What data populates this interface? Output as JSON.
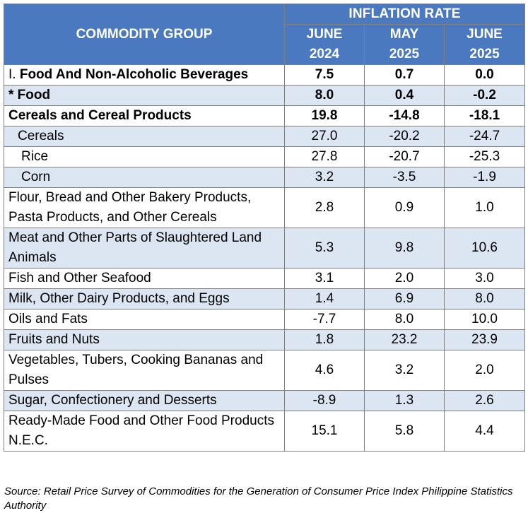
{
  "header": {
    "commodity_label": "COMMODITY GROUP",
    "group_label": "INFLATION RATE",
    "periods": [
      {
        "line1": "JUNE",
        "line2": "2024"
      },
      {
        "line1": "MAY",
        "line2": "2025"
      },
      {
        "line1": "JUNE",
        "line2": "2025"
      }
    ]
  },
  "rows": [
    {
      "prefix": "I. ",
      "label": "Food And Non-Alcoholic Beverages",
      "values": [
        "7.5",
        "0.7",
        "0.0"
      ]
    },
    {
      "label": "* Food",
      "values": [
        "8.0",
        "0.4",
        "-0.2"
      ]
    },
    {
      "label": "Cereals and Cereal Products",
      "values": [
        "19.8",
        "-14.8",
        "-18.1"
      ]
    },
    {
      "label": "Cereals",
      "values": [
        "27.0",
        "-20.2",
        "-24.7"
      ]
    },
    {
      "label": "Rice",
      "values": [
        "27.8",
        "-20.7",
        "-25.3"
      ]
    },
    {
      "label": "Corn",
      "values": [
        "3.2",
        "-3.5",
        "-1.9"
      ]
    },
    {
      "label": "Flour, Bread and Other Bakery Products, Pasta Products, and Other Cereals",
      "values": [
        "2.8",
        "0.9",
        "1.0"
      ]
    },
    {
      "label": "Meat and Other Parts of Slaughtered Land Animals",
      "values": [
        "5.3",
        "9.8",
        "10.6"
      ]
    },
    {
      "label": "Fish and Other Seafood",
      "values": [
        "3.1",
        "2.0",
        "3.0"
      ]
    },
    {
      "label": "Milk, Other Dairy Products, and Eggs",
      "values": [
        "1.4",
        "6.9",
        "8.0"
      ]
    },
    {
      "label": "Oils and Fats",
      "values": [
        "-7.7",
        "8.0",
        "10.0"
      ]
    },
    {
      "label": "Fruits and Nuts",
      "values": [
        "1.8",
        "23.2",
        "23.9"
      ]
    },
    {
      "label": "Vegetables, Tubers, Cooking Bananas and Pulses",
      "values": [
        "4.6",
        "3.2",
        "2.0"
      ]
    },
    {
      "label": "Sugar, Confectionery and Desserts",
      "values": [
        "-8.9",
        "1.3",
        "2.6"
      ]
    },
    {
      "label": "Ready-Made Food and Other Food Products N.E.C.",
      "values": [
        "15.1",
        "5.8",
        "4.4"
      ]
    }
  ],
  "source": "Source: Retail Price Survey of Commodities for the Generation of Consumer Price Index Philippine Statistics Authority",
  "colors": {
    "header_bg": "#4a79c0",
    "band": "#dce6f2",
    "border": "#7f7f7f"
  }
}
